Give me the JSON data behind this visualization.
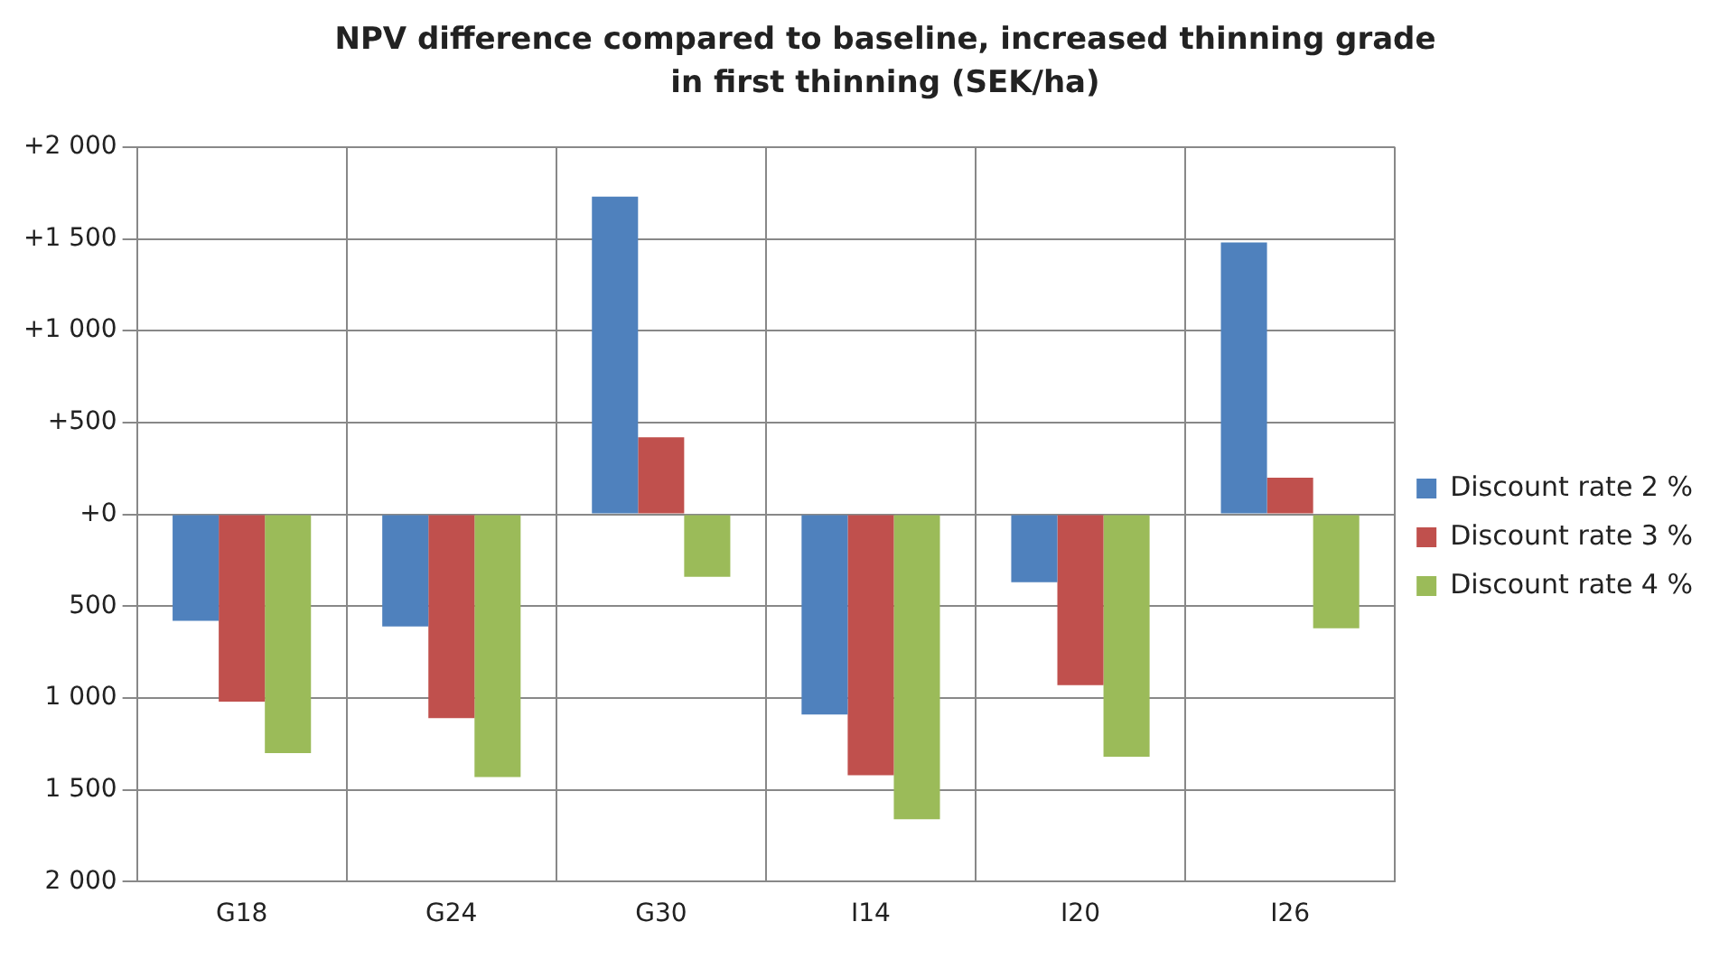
{
  "chart_data": {
    "type": "bar",
    "title": "NPV difference compared to baseline, increased thinning grade in first thinning (SEK/ha)",
    "categories": [
      "G18",
      "G24",
      "G30",
      "I14",
      "I20",
      "I26"
    ],
    "series": [
      {
        "name": "Discount rate 2 %",
        "color": "#4f81bd",
        "values": [
          -580,
          -610,
          1730,
          -1090,
          -370,
          1480
        ]
      },
      {
        "name": "Discount rate 3 %",
        "color": "#c0504d",
        "values": [
          -1020,
          -1110,
          420,
          -1420,
          -930,
          200
        ]
      },
      {
        "name": "Discount rate 4 %",
        "color": "#9bbb59",
        "values": [
          -1300,
          -1430,
          -340,
          -1660,
          -1320,
          -620
        ]
      }
    ],
    "ylim": [
      -2000,
      2000
    ],
    "yticks": [
      {
        "value": 2000,
        "label": "+2 000"
      },
      {
        "value": 1500,
        "label": "+1 500"
      },
      {
        "value": 1000,
        "label": "+1 000"
      },
      {
        "value": 500,
        "label": "+500"
      },
      {
        "value": 0,
        "label": "+0"
      },
      {
        "value": -500,
        "label": "500"
      },
      {
        "value": -1000,
        "label": "1 000"
      },
      {
        "value": -1500,
        "label": "1 500"
      },
      {
        "value": -2000,
        "label": "2 000"
      }
    ],
    "grid": true,
    "legend": "right"
  }
}
